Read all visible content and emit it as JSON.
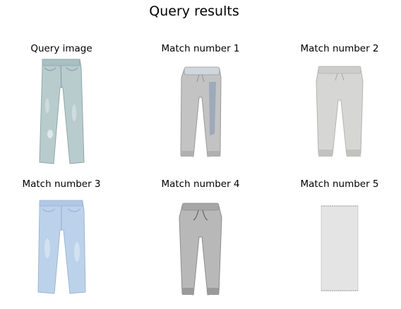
{
  "figure": {
    "title": "Query results",
    "panels": [
      {
        "id": "query",
        "title": "Query image",
        "item": "light-wash-jeans",
        "colors": {
          "fill": "#b9cccd",
          "shade": "#8ea7aa",
          "accent": "#6f8a8e"
        }
      },
      {
        "id": "match-1",
        "title": "Match number 1",
        "item": "gray-jogger-pants-printed",
        "colors": {
          "fill": "#c3c3c3",
          "shade": "#9a9a9a",
          "accent": "#8fa0b8"
        }
      },
      {
        "id": "match-2",
        "title": "Match number 2",
        "item": "light-gray-jogger-pants",
        "colors": {
          "fill": "#d6d6d4",
          "shade": "#b3b3b1",
          "accent": "#9d9d9b"
        }
      },
      {
        "id": "match-3",
        "title": "Match number 3",
        "item": "light-blue-jeans",
        "colors": {
          "fill": "#bcd2ea",
          "shade": "#9bb6d6",
          "accent": "#88a4c8"
        }
      },
      {
        "id": "match-4",
        "title": "Match number 4",
        "item": "gray-sweatpants",
        "colors": {
          "fill": "#b8b8b8",
          "shade": "#8c8c8c",
          "accent": "#555555"
        }
      },
      {
        "id": "match-5",
        "title": "Match number 5",
        "item": "white-towel",
        "colors": {
          "fill": "#e4e4e4",
          "shade": "#cfcfcf",
          "accent": "#bdbdbd"
        }
      }
    ]
  }
}
